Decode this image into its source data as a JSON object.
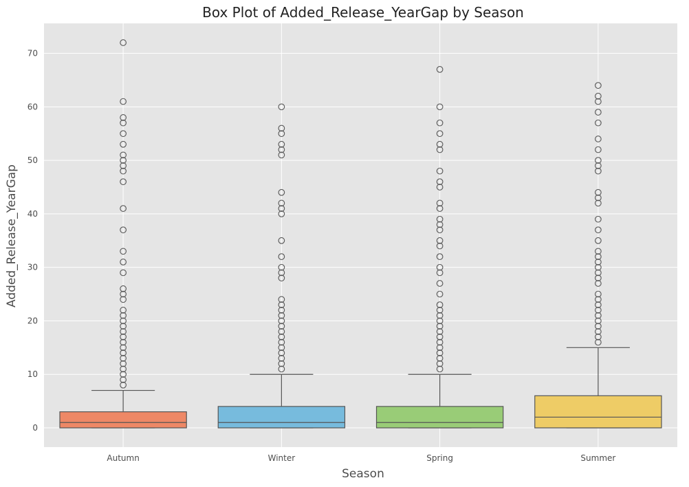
{
  "chart_data": {
    "type": "box",
    "title": "Box Plot of Added_Release_YearGap by Season",
    "xlabel": "Season",
    "ylabel": "Added_Release_YearGap",
    "ylim": [
      -3.6,
      75.6
    ],
    "yticks": [
      0,
      10,
      20,
      30,
      40,
      50,
      60,
      70
    ],
    "grid": true,
    "categories": [
      "Autumn",
      "Winter",
      "Spring",
      "Summer"
    ],
    "boxes": [
      {
        "category": "Autumn",
        "color": "#ee8866",
        "whisker_low": 0,
        "q1": 0,
        "median": 1,
        "q3": 3,
        "whisker_high": 7,
        "outliers": [
          8,
          9,
          10,
          11,
          12,
          13,
          14,
          15,
          16,
          17,
          18,
          19,
          20,
          21,
          22,
          24,
          25,
          26,
          29,
          31,
          33,
          37,
          41,
          46,
          48,
          49,
          50,
          51,
          53,
          55,
          57,
          58,
          61,
          72
        ]
      },
      {
        "category": "Winter",
        "color": "#77bbdd",
        "whisker_low": 0,
        "q1": 0,
        "median": 1,
        "q3": 4,
        "whisker_high": 10,
        "outliers": [
          11,
          12,
          13,
          14,
          15,
          16,
          17,
          18,
          19,
          20,
          21,
          22,
          23,
          24,
          28,
          29,
          30,
          32,
          35,
          40,
          41,
          42,
          44,
          51,
          52,
          53,
          55,
          56,
          60
        ]
      },
      {
        "category": "Spring",
        "color": "#99cc77",
        "whisker_low": 0,
        "q1": 0,
        "median": 1,
        "q3": 4,
        "whisker_high": 10,
        "outliers": [
          11,
          12,
          13,
          14,
          15,
          16,
          17,
          18,
          19,
          20,
          21,
          22,
          23,
          25,
          27,
          29,
          30,
          32,
          34,
          35,
          37,
          38,
          39,
          41,
          42,
          45,
          46,
          48,
          52,
          53,
          55,
          57,
          60,
          67
        ]
      },
      {
        "category": "Summer",
        "color": "#eecc66",
        "whisker_low": 0,
        "q1": 0,
        "median": 2,
        "q3": 6,
        "whisker_high": 15,
        "outliers": [
          16,
          17,
          18,
          19,
          20,
          21,
          22,
          23,
          24,
          25,
          27,
          28,
          29,
          30,
          31,
          32,
          33,
          35,
          37,
          39,
          42,
          43,
          44,
          48,
          49,
          50,
          52,
          54,
          57,
          59,
          61,
          62,
          64
        ]
      }
    ],
    "colors": {
      "background": "#e5e5e5",
      "grid": "#ffffff",
      "line": "#555555"
    }
  }
}
